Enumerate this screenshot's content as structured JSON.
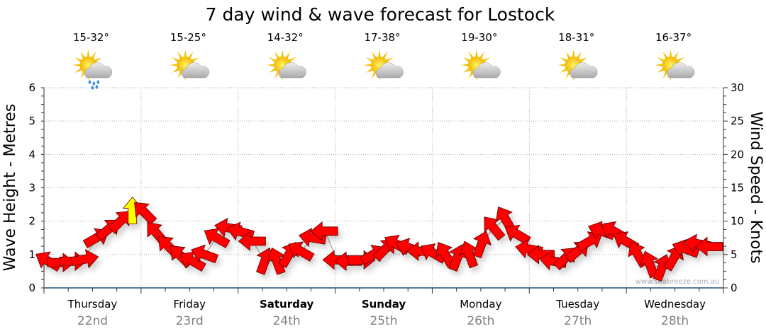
{
  "chart_data": {
    "type": "scatter",
    "title": "7 day wind & wave forecast for Lostock",
    "ylabel": "Wave Height - Metres",
    "y2label": "Wind Speed - Knots",
    "ylim": [
      0,
      6
    ],
    "y2lim": [
      0,
      30
    ],
    "yticks": [
      "0",
      "1",
      "2",
      "3",
      "4",
      "5",
      "6"
    ],
    "y2ticks": [
      "0",
      "5",
      "10",
      "15",
      "20",
      "25",
      "30"
    ],
    "grid": true,
    "days": [
      {
        "name": "Thursday",
        "date": "22nd",
        "temp": "15-32°",
        "weather": "sun-cloud-rain",
        "bold": false
      },
      {
        "name": "Friday",
        "date": "23rd",
        "temp": "15-25°",
        "weather": "sun-cloud",
        "bold": false
      },
      {
        "name": "Saturday",
        "date": "24th",
        "temp": "14-32°",
        "weather": "sun-cloud",
        "bold": true
      },
      {
        "name": "Sunday",
        "date": "25th",
        "temp": "17-38°",
        "weather": "sun-cloud",
        "bold": true
      },
      {
        "name": "Monday",
        "date": "26th",
        "temp": "19-30°",
        "weather": "sun-cloud",
        "bold": false
      },
      {
        "name": "Tuesday",
        "date": "27th",
        "temp": "18-31°",
        "weather": "sun-cloud",
        "bold": false
      },
      {
        "name": "Wednesday",
        "date": "28th",
        "temp": "16-37°",
        "weather": "sun-cloud",
        "bold": false
      }
    ],
    "interval_hours": 3,
    "wind_knots": [
      4,
      3.8,
      4,
      4.3,
      7.5,
      8.8,
      10,
      11.5,
      11.3,
      8.2,
      6.2,
      4.8,
      4,
      5,
      7.5,
      9,
      8.4,
      7,
      4,
      4,
      5,
      5.5,
      7.5,
      8.5,
      4.2,
      4,
      4.2,
      5,
      5.8,
      6.5,
      6,
      5.5,
      5.2,
      5,
      4.5,
      5,
      6.5,
      9,
      10.3,
      8,
      5.8,
      5,
      4,
      4.5,
      5.5,
      7,
      8.5,
      8.5,
      7,
      5,
      3.5,
      3,
      4.5,
      5.8,
      6.6,
      6.2
    ],
    "wind_direction_deg": [
      300,
      90,
      90,
      80,
      60,
      50,
      45,
      0,
      315,
      320,
      315,
      315,
      300,
      290,
      300,
      280,
      285,
      270,
      20,
      340,
      30,
      300,
      280,
      270,
      270,
      270,
      90,
      60,
      45,
      300,
      290,
      270,
      300,
      330,
      20,
      340,
      20,
      320,
      330,
      300,
      280,
      270,
      280,
      45,
      50,
      60,
      290,
      300,
      300,
      330,
      340,
      20,
      30,
      290,
      280,
      270
    ],
    "arrow_colors": {
      "default": "#ff0000",
      "strong": "#ffff00"
    },
    "strong_indices": [
      7
    ],
    "watermark": "www.seabreeze.com.au"
  }
}
